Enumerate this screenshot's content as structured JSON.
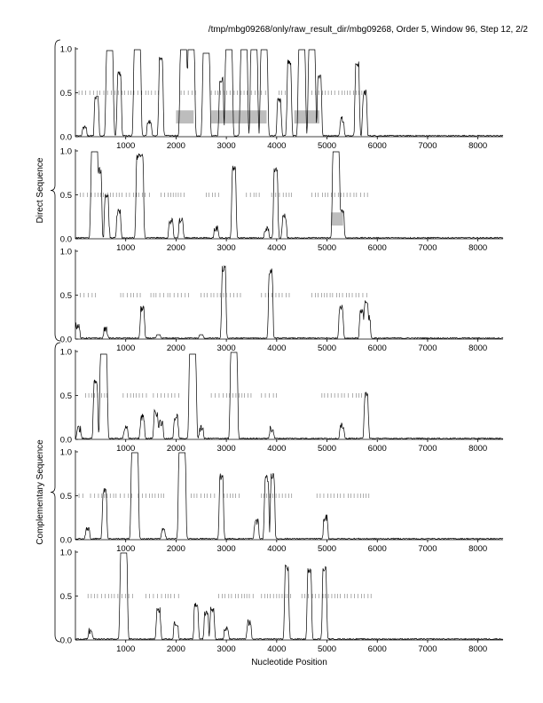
{
  "header": "/tmp/mbg09268/only/raw_result_dir/mbg09268, Order 5, Window 96, Step 12, 2/2",
  "groups": [
    {
      "label": "Direct Sequence",
      "panels": [
        0,
        1,
        2
      ]
    },
    {
      "label": "Complementary Sequence",
      "panels": [
        3,
        4,
        5
      ]
    }
  ],
  "chart_data": {
    "type": "line",
    "xlabel": "Nucleotide Position",
    "ylabel": "",
    "xlim": [
      0,
      8500
    ],
    "ylim": [
      0,
      1.0
    ],
    "xticks": [
      1000,
      2000,
      3000,
      4000,
      5000,
      6000,
      7000,
      8000
    ],
    "yticks": [
      "0.0",
      "0.5",
      "1.0"
    ],
    "threshold_y": 0.5,
    "panels": [
      {
        "peaks": [
          [
            180,
            0.1
          ],
          [
            420,
            0.45
          ],
          [
            680,
            0.98
          ],
          [
            870,
            0.72
          ],
          [
            1230,
            0.99
          ],
          [
            1470,
            0.18
          ],
          [
            1700,
            0.88
          ],
          [
            2150,
            0.99
          ],
          [
            2300,
            0.99
          ],
          [
            2600,
            0.95
          ],
          [
            2900,
            0.65
          ],
          [
            3050,
            0.99
          ],
          [
            3350,
            0.99
          ],
          [
            3550,
            0.99
          ],
          [
            3750,
            0.99
          ],
          [
            4050,
            0.4
          ],
          [
            4250,
            0.85
          ],
          [
            4500,
            0.99
          ],
          [
            4700,
            0.99
          ],
          [
            4850,
            0.7
          ],
          [
            5300,
            0.2
          ],
          [
            5600,
            0.83
          ],
          [
            5750,
            0.5
          ]
        ],
        "dashes": [
          [
            0,
            1700
          ],
          [
            2100,
            2400
          ],
          [
            2700,
            3800
          ],
          [
            4050,
            4200
          ],
          [
            4700,
            5800
          ]
        ],
        "bars": [
          [
            2000,
            2350
          ],
          [
            2700,
            3800
          ],
          [
            4350,
            4850
          ]
        ]
      },
      {
        "peaks": [
          [
            380,
            0.99
          ],
          [
            480,
            0.78
          ],
          [
            620,
            0.5
          ],
          [
            860,
            0.3
          ],
          [
            1280,
            0.93
          ],
          [
            1900,
            0.2
          ],
          [
            2100,
            0.22
          ],
          [
            2800,
            0.12
          ],
          [
            3150,
            0.8
          ],
          [
            3800,
            0.12
          ],
          [
            3980,
            0.79
          ],
          [
            4150,
            0.25
          ],
          [
            5180,
            0.99
          ],
          [
            5300,
            0.3
          ]
        ],
        "dashes": [
          [
            100,
            1500
          ],
          [
            1700,
            2200
          ],
          [
            2600,
            2900
          ],
          [
            3400,
            3700
          ],
          [
            3900,
            4300
          ],
          [
            4700,
            5850
          ]
        ],
        "bars": [
          [
            5080,
            5320
          ]
        ]
      },
      {
        "peaks": [
          [
            40,
            0.15
          ],
          [
            600,
            0.1
          ],
          [
            1330,
            0.34
          ],
          [
            1650,
            0.05
          ],
          [
            2500,
            0.05
          ],
          [
            2950,
            0.8
          ],
          [
            3880,
            0.77
          ],
          [
            5280,
            0.38
          ],
          [
            5690,
            0.3
          ],
          [
            5780,
            0.4
          ],
          [
            5820,
            0.25
          ]
        ],
        "dashes": [
          [
            100,
            450
          ],
          [
            900,
            1300
          ],
          [
            1500,
            2300
          ],
          [
            2500,
            3300
          ],
          [
            3700,
            4300
          ],
          [
            4700,
            5800
          ]
        ],
        "bars": []
      },
      {
        "peaks": [
          [
            70,
            0.12
          ],
          [
            400,
            0.65
          ],
          [
            560,
            0.97
          ],
          [
            1000,
            0.12
          ],
          [
            1330,
            0.25
          ],
          [
            1600,
            0.3
          ],
          [
            1700,
            0.18
          ],
          [
            2000,
            0.25
          ],
          [
            2330,
            0.97
          ],
          [
            2500,
            0.12
          ],
          [
            3150,
            0.99
          ],
          [
            3900,
            0.12
          ],
          [
            5300,
            0.15
          ],
          [
            5780,
            0.5
          ]
        ],
        "dashes": [
          [
            200,
            700
          ],
          [
            950,
            1450
          ],
          [
            1550,
            2100
          ],
          [
            2700,
            3500
          ],
          [
            3700,
            4000
          ],
          [
            4900,
            5800
          ]
        ],
        "bars": []
      },
      {
        "peaks": [
          [
            240,
            0.12
          ],
          [
            580,
            0.57
          ],
          [
            1180,
            0.99
          ],
          [
            1750,
            0.1
          ],
          [
            2120,
            0.99
          ],
          [
            2900,
            0.72
          ],
          [
            3600,
            0.2
          ],
          [
            3800,
            0.7
          ],
          [
            3920,
            0.72
          ],
          [
            4970,
            0.25
          ]
        ],
        "dashes": [
          [
            0,
            150
          ],
          [
            300,
            1150
          ],
          [
            1250,
            1800
          ],
          [
            2300,
            2800
          ],
          [
            2950,
            3300
          ],
          [
            3700,
            4300
          ],
          [
            4800,
            5900
          ]
        ],
        "bars": []
      },
      {
        "peaks": [
          [
            300,
            0.1
          ],
          [
            960,
            0.99
          ],
          [
            1650,
            0.35
          ],
          [
            2000,
            0.2
          ],
          [
            2400,
            0.4
          ],
          [
            2600,
            0.32
          ],
          [
            2720,
            0.35
          ],
          [
            3000,
            0.12
          ],
          [
            3450,
            0.2
          ],
          [
            4200,
            0.82
          ],
          [
            4650,
            0.8
          ],
          [
            4950,
            0.8
          ]
        ],
        "dashes": [
          [
            250,
            1150
          ],
          [
            1400,
            2100
          ],
          [
            2850,
            3550
          ],
          [
            3700,
            4300
          ],
          [
            4500,
            5900
          ]
        ],
        "bars": []
      }
    ]
  }
}
